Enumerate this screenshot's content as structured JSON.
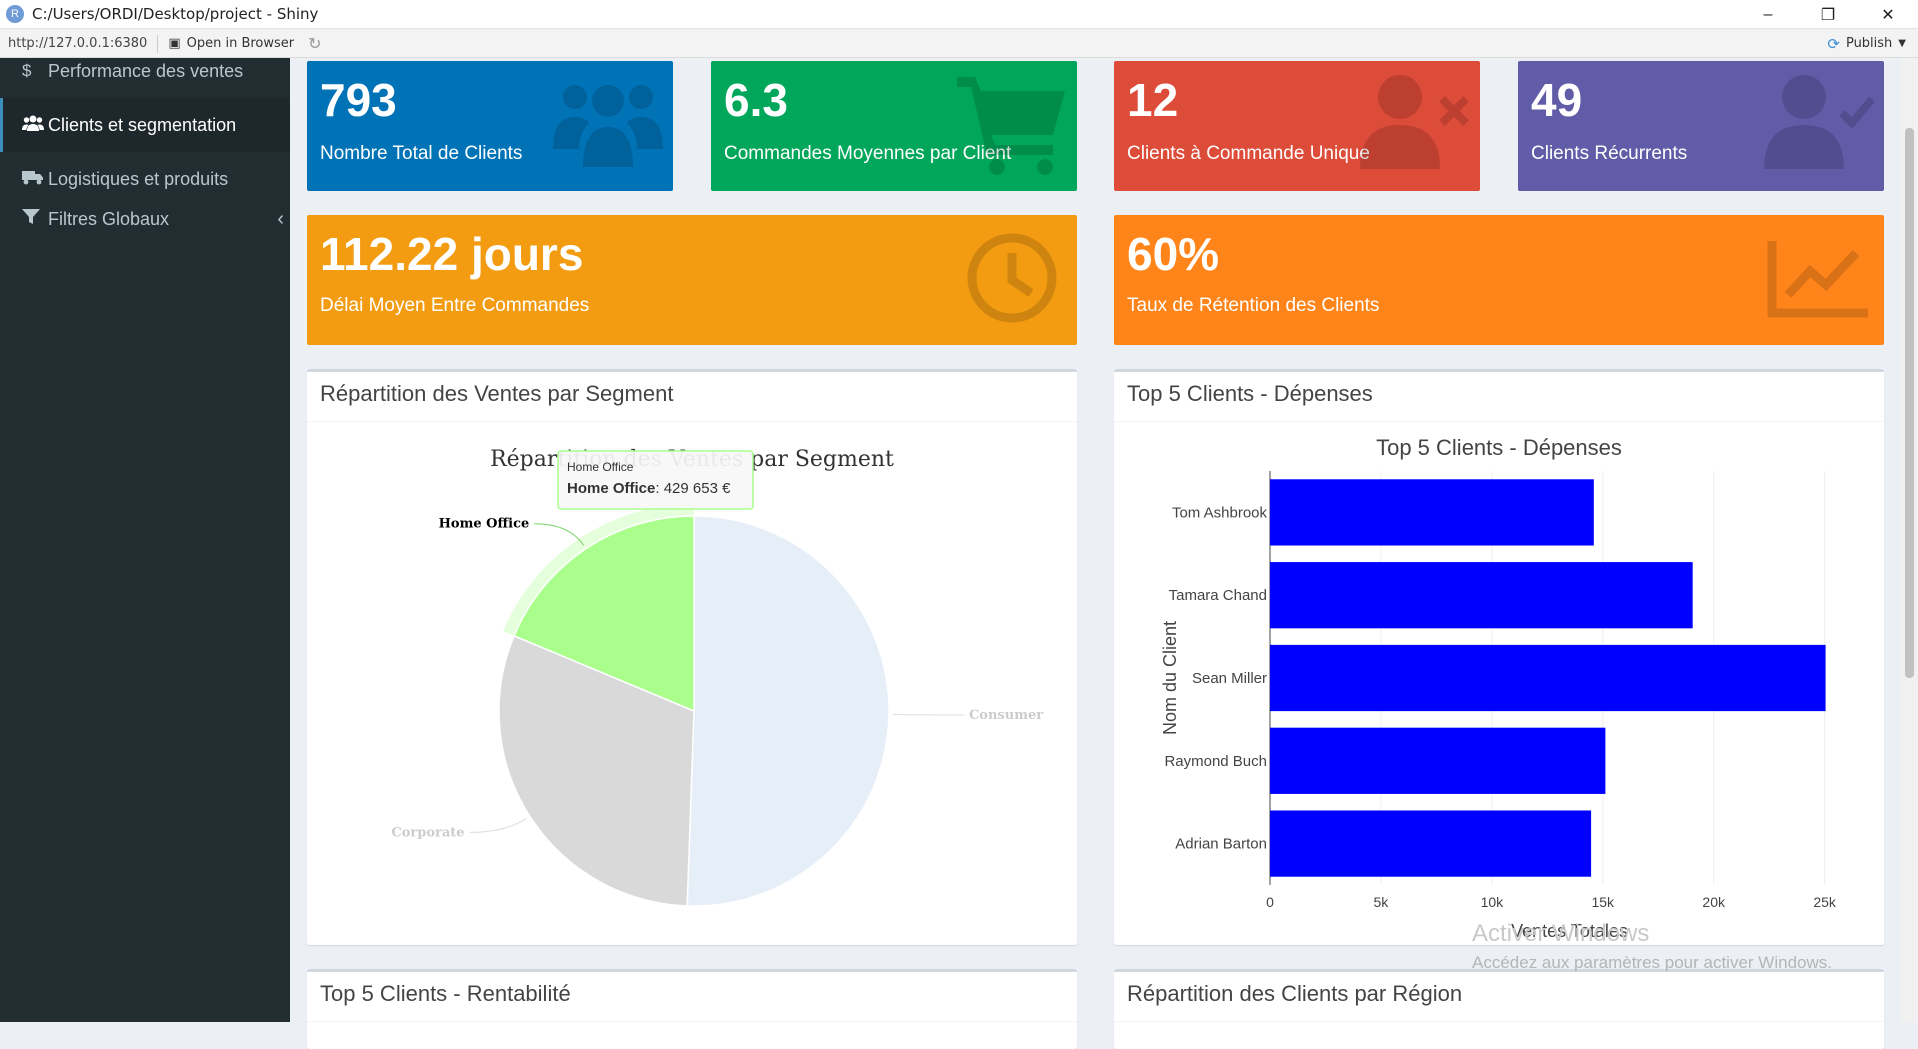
{
  "window": {
    "title": "C:/Users/ORDI/Desktop/project - Shiny",
    "url": "http://127.0.0.1:6380",
    "open_in_browser": "Open in Browser",
    "publish": "Publish"
  },
  "sidebar": {
    "items": [
      {
        "label": "Performance des ventes",
        "icon": "dollar-icon"
      },
      {
        "label": "Clients et segmentation",
        "icon": "users-icon"
      },
      {
        "label": "Logistiques et produits",
        "icon": "truck-icon"
      },
      {
        "label": "Filtres Globaux",
        "icon": "filter-icon"
      }
    ]
  },
  "kpis": [
    {
      "value": "793",
      "label": "Nombre Total de Clients",
      "color": "#0073b7",
      "icon": "users-icon"
    },
    {
      "value": "6.3",
      "label": "Commandes Moyennes par Client",
      "color": "#00a65a",
      "icon": "cart-icon"
    },
    {
      "value": "12",
      "label": "Clients à Commande Unique",
      "color": "#dd4b39",
      "icon": "user-times-icon"
    },
    {
      "value": "49",
      "label": "Clients Récurrents",
      "color": "#605ca8",
      "icon": "user-check-icon"
    },
    {
      "value": "112.22 jours",
      "label": "Délai Moyen Entre Commandes",
      "color": "#f39c12",
      "icon": "clock-icon"
    },
    {
      "value": "60%",
      "label": "Taux de Rétention des Clients",
      "color": "#ff851b",
      "icon": "line-chart-icon"
    }
  ],
  "panels": {
    "segment": {
      "title": "Répartition des Ventes par Segment"
    },
    "top5_spend": {
      "title": "Top 5 Clients - Dépenses"
    },
    "top5_profit": {
      "title": "Top 5 Clients - Rentabilité"
    },
    "region": {
      "title": "Répartition des Clients par Région"
    }
  },
  "chart_data": [
    {
      "type": "pie",
      "title": "Répartition des Ventes par Segment",
      "labels": [
        "Consumer",
        "Corporate",
        "Home Office"
      ],
      "values": [
        1161401,
        706146,
        429653
      ],
      "colors": [
        "#e6eef8",
        "#d9d9d9",
        "#aaff8c"
      ],
      "highlighted": "Home Office",
      "tooltip": {
        "header": "Home Office",
        "name": "Home Office",
        "value": "429 653 €"
      }
    },
    {
      "type": "bar",
      "orientation": "horizontal",
      "title": "Top 5 Clients - Dépenses",
      "categories": [
        "Tom Ashbrook",
        "Tamara Chand",
        "Sean Miller",
        "Raymond Buch",
        "Adrian Barton"
      ],
      "values": [
        14596,
        19052,
        25043,
        15117,
        14474
      ],
      "xlabel": "Ventes Totales",
      "ylabel": "Nom du Client",
      "xlim": [
        0,
        27000
      ],
      "xticks": [
        "0",
        "5k",
        "10k",
        "15k",
        "20k",
        "25k"
      ],
      "color": "#0000ff"
    }
  ],
  "watermark": {
    "line1": "Activer Windows",
    "line2": "Accédez aux paramètres pour activer Windows."
  }
}
